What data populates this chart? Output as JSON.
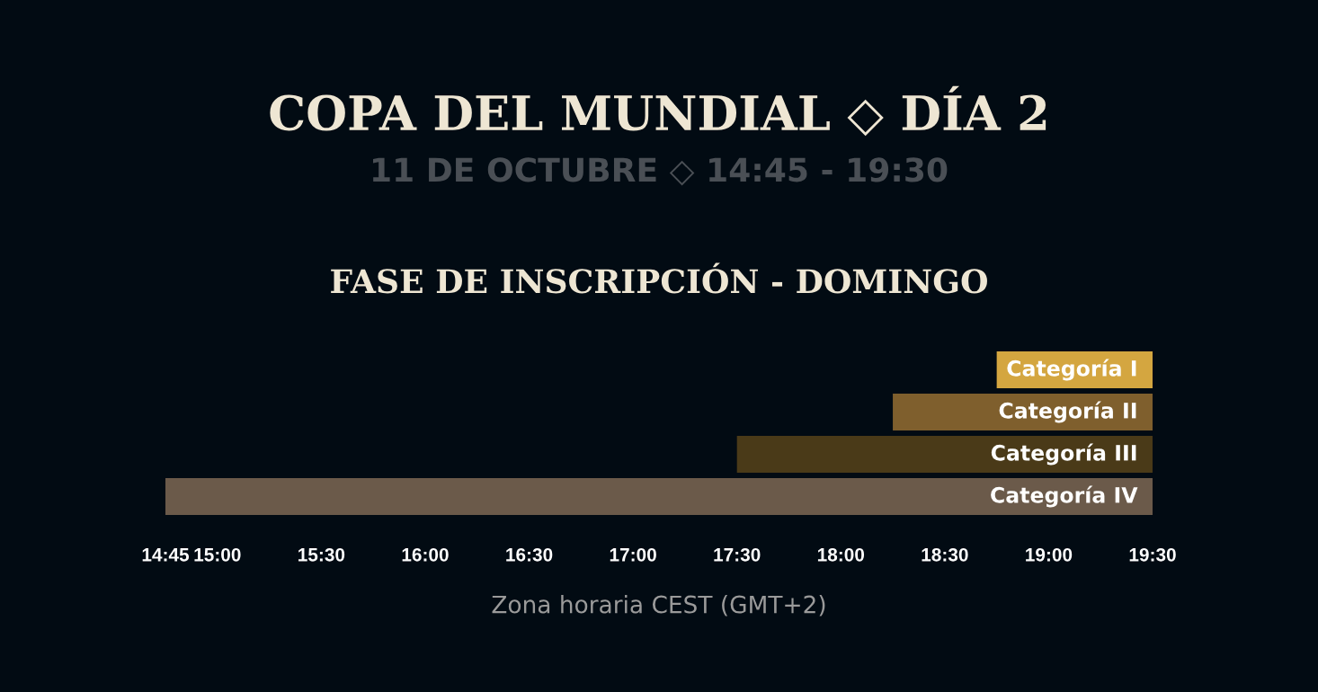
{
  "chart_data": {
    "type": "bar",
    "orientation": "horizontal",
    "title": "COPA DEL MUNDIAL ◇ DÍA 2",
    "subtitle": "11 DE OCTUBRE ◇ 14:45 - 19:30",
    "annotations": [
      "FASE DE INSCRIPCIÓN - DOMINGO"
    ],
    "xlabel": "Zona horaria CEST (GMT+2)",
    "categories": [
      "Categoría I",
      "Categoría II",
      "Categoría III",
      "Categoría IV"
    ],
    "base": [
      18.75,
      18.25,
      17.5,
      14.75
    ],
    "values": [
      0.75,
      1.25,
      2,
      4.75
    ],
    "colors": [
      "#d4a640",
      "#7f5f2d",
      "#4a3a18",
      "#6b5a4a"
    ],
    "xlim": [
      14.75,
      19.5
    ],
    "xticks": [
      {
        "value": 14.75,
        "label": "14:45"
      },
      {
        "value": 15,
        "label": "15:00"
      },
      {
        "value": 15.5,
        "label": "15:30"
      },
      {
        "value": 16,
        "label": "16:00"
      },
      {
        "value": 16.5,
        "label": "16:30"
      },
      {
        "value": 17,
        "label": "17:00"
      },
      {
        "value": 17.5,
        "label": "17:30"
      },
      {
        "value": 18,
        "label": "18:00"
      },
      {
        "value": 18.5,
        "label": "18:30"
      },
      {
        "value": 19,
        "label": "19:00"
      },
      {
        "value": 19.5,
        "label": "19:30"
      }
    ],
    "tick_labels": "x",
    "grid": false,
    "legend": false
  }
}
